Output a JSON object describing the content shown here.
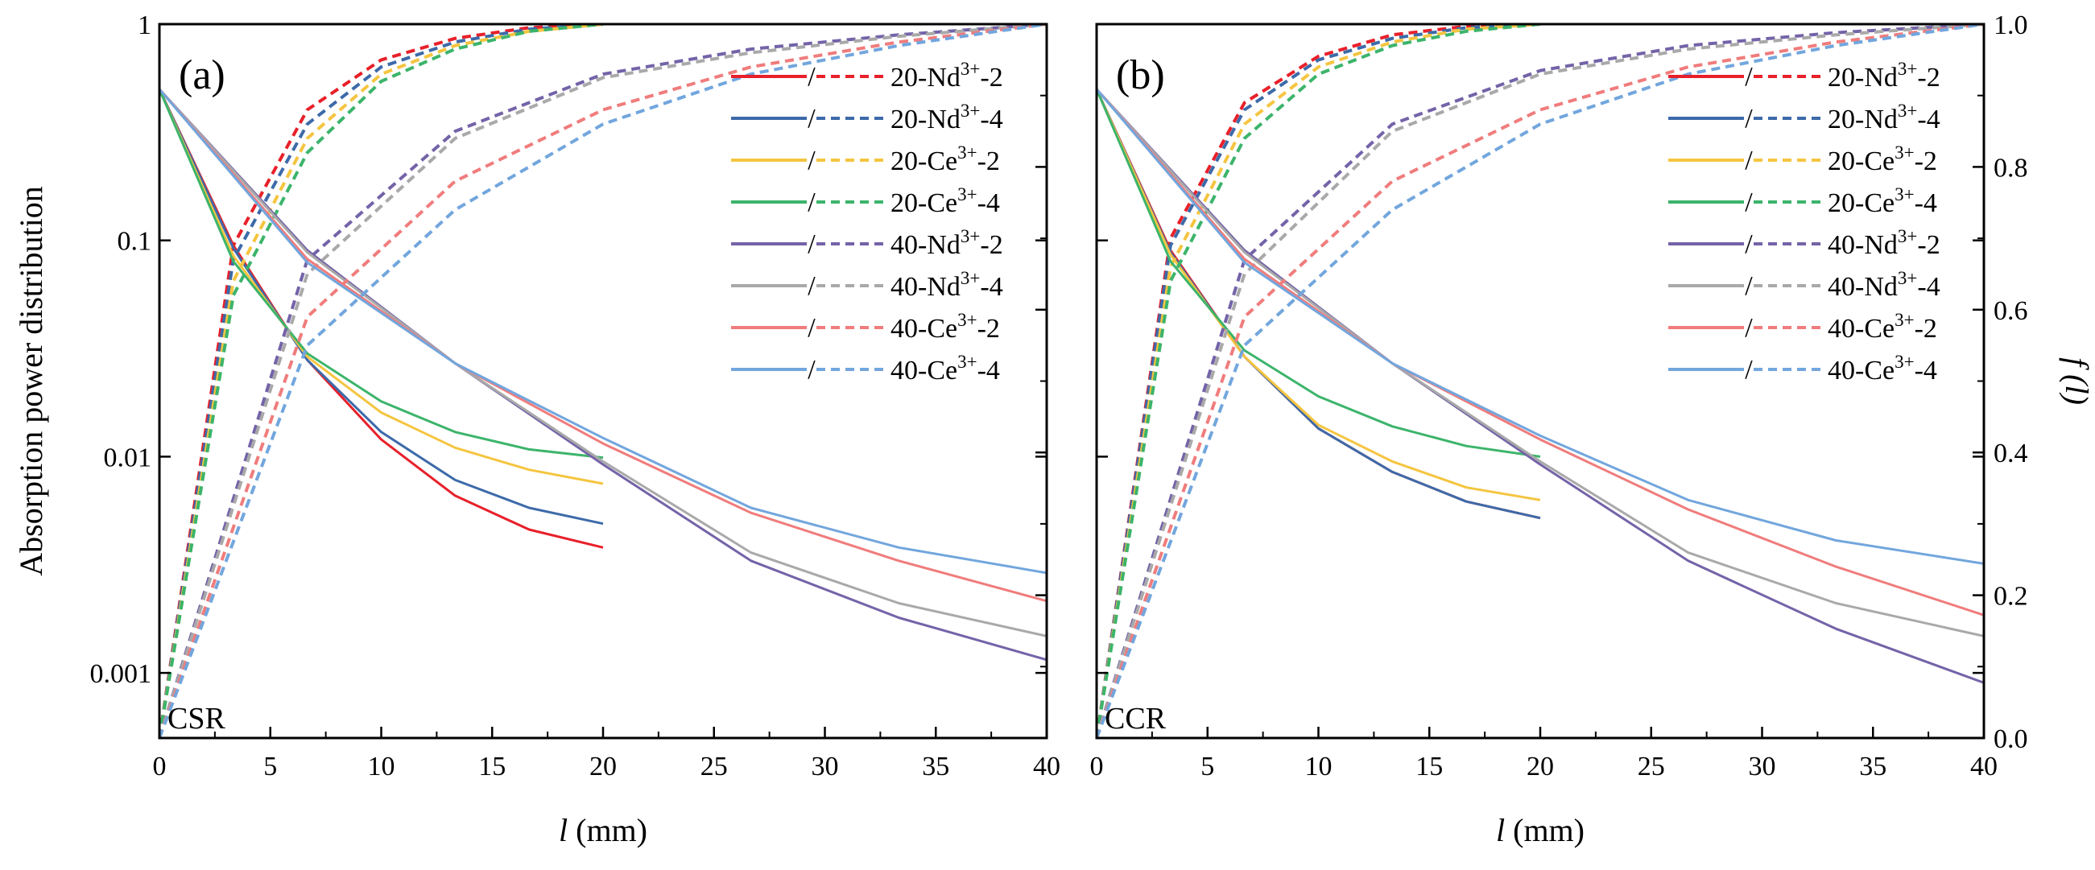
{
  "chart_data": [
    {
      "type": "line",
      "panel_label": "(a)",
      "corner_label": "CSR",
      "xlabel_var": "l",
      "xlabel_unit": " (mm)",
      "ylabel_left": "Absorption power distribution",
      "xlim": [
        0,
        40
      ],
      "ylim_left": [
        0.0005,
        1
      ],
      "yscale_left": "log",
      "x_ticks": [
        "0",
        "5",
        "10",
        "15",
        "20",
        "25",
        "30",
        "35",
        "40"
      ],
      "y_ticks_left": [
        "0.001",
        "0.01",
        "0.1",
        "1"
      ],
      "legend_location": "top-right",
      "series": [
        {
          "name": "20-Nd3+-2",
          "color": "#e8202a",
          "length": 20,
          "apd": [
            0.5,
            0.095,
            0.028,
            0.012,
            0.0066,
            0.0046,
            0.0038
          ],
          "f": [
            0.0,
            0.69,
            0.88,
            0.95,
            0.98,
            0.995,
            1.0
          ]
        },
        {
          "name": "20-Nd3+-4",
          "color": "#3d6aa9",
          "length": 20,
          "apd": [
            0.5,
            0.092,
            0.028,
            0.013,
            0.0078,
            0.0058,
            0.0049
          ],
          "f": [
            0.0,
            0.67,
            0.86,
            0.94,
            0.975,
            0.993,
            1.0
          ]
        },
        {
          "name": "20-Ce3+-2",
          "color": "#f5c540",
          "length": 20,
          "apd": [
            0.5,
            0.085,
            0.029,
            0.016,
            0.011,
            0.0087,
            0.0075
          ],
          "f": [
            0.0,
            0.64,
            0.84,
            0.93,
            0.97,
            0.99,
            1.0
          ]
        },
        {
          "name": "20-Ce3+-4",
          "color": "#3cb46b",
          "length": 20,
          "apd": [
            0.5,
            0.08,
            0.03,
            0.018,
            0.013,
            0.0108,
            0.0099
          ],
          "f": [
            0.0,
            0.62,
            0.82,
            0.92,
            0.965,
            0.99,
            1.0
          ]
        },
        {
          "name": "40-Nd3+-2",
          "color": "#7463a8",
          "length": 40,
          "apd": [
            0.5,
            0.09,
            0.027,
            0.0092,
            0.0033,
            0.0018,
            0.00115
          ],
          "f": [
            0.0,
            0.67,
            0.85,
            0.93,
            0.965,
            0.985,
            1.0
          ]
        },
        {
          "name": "40-Nd3+-4",
          "color": "#a9a9a9",
          "length": 40,
          "apd": [
            0.5,
            0.088,
            0.027,
            0.0095,
            0.0036,
            0.0021,
            0.00148
          ],
          "f": [
            0.0,
            0.65,
            0.84,
            0.925,
            0.96,
            0.983,
            1.0
          ]
        },
        {
          "name": "40-Ce3+-2",
          "color": "#f07c7c",
          "length": 40,
          "apd": [
            0.5,
            0.082,
            0.027,
            0.0115,
            0.0055,
            0.0033,
            0.00215
          ],
          "f": [
            0.0,
            0.59,
            0.78,
            0.88,
            0.94,
            0.975,
            1.0
          ]
        },
        {
          "name": "40-Ce3+-4",
          "color": "#72a6dd",
          "length": 40,
          "apd": [
            0.5,
            0.079,
            0.027,
            0.0122,
            0.0058,
            0.0038,
            0.0029
          ],
          "f": [
            0.0,
            0.55,
            0.74,
            0.86,
            0.93,
            0.97,
            1.0
          ]
        }
      ]
    },
    {
      "type": "line",
      "panel_label": "(b)",
      "corner_label": "CCR",
      "xlabel_var": "l",
      "xlabel_unit": " (mm)",
      "ylabel_right": "f (l)",
      "xlim": [
        0,
        40
      ],
      "ylim_right": [
        0,
        1
      ],
      "x_ticks": [
        "0",
        "5",
        "10",
        "15",
        "20",
        "25",
        "30",
        "35",
        "40"
      ],
      "y_ticks_right": [
        "0.0",
        "0.2",
        "0.4",
        "0.6",
        "0.8",
        "1.0"
      ],
      "legend_location": "top-right",
      "series": [
        {
          "name": "20-Nd3+-2",
          "color": "#e8202a",
          "length": 20,
          "apd": [
            0.5,
            0.09,
            0.029,
            0.0135,
            0.0085,
            0.0062,
            0.0052
          ],
          "f": [
            0.0,
            0.7,
            0.89,
            0.955,
            0.985,
            0.997,
            1.0
          ]
        },
        {
          "name": "20-Nd3+-4",
          "color": "#3d6aa9",
          "length": 20,
          "apd": [
            0.5,
            0.088,
            0.029,
            0.0135,
            0.0085,
            0.0062,
            0.0052
          ],
          "f": [
            0.0,
            0.69,
            0.88,
            0.95,
            0.98,
            0.995,
            1.0
          ]
        },
        {
          "name": "20-Ce3+-2",
          "color": "#f5c540",
          "length": 20,
          "apd": [
            0.5,
            0.086,
            0.029,
            0.014,
            0.0095,
            0.0072,
            0.0063
          ],
          "f": [
            0.0,
            0.66,
            0.86,
            0.94,
            0.975,
            0.993,
            1.0
          ]
        },
        {
          "name": "20-Ce3+-4",
          "color": "#3cb46b",
          "length": 20,
          "apd": [
            0.5,
            0.08,
            0.031,
            0.019,
            0.0138,
            0.0112,
            0.01
          ],
          "f": [
            0.0,
            0.64,
            0.84,
            0.93,
            0.97,
            0.99,
            1.0
          ]
        },
        {
          "name": "40-Nd3+-2",
          "color": "#7463a8",
          "length": 40,
          "apd": [
            0.5,
            0.09,
            0.027,
            0.0092,
            0.0033,
            0.0016,
            0.0009
          ],
          "f": [
            0.0,
            0.67,
            0.86,
            0.935,
            0.97,
            0.988,
            1.0
          ]
        },
        {
          "name": "40-Nd3+-4",
          "color": "#a9a9a9",
          "length": 40,
          "apd": [
            0.5,
            0.088,
            0.027,
            0.0095,
            0.0036,
            0.0021,
            0.00148
          ],
          "f": [
            0.0,
            0.65,
            0.85,
            0.93,
            0.965,
            0.985,
            1.0
          ]
        },
        {
          "name": "40-Ce3+-2",
          "color": "#f07c7c",
          "length": 40,
          "apd": [
            0.5,
            0.082,
            0.027,
            0.012,
            0.0057,
            0.0031,
            0.00185
          ],
          "f": [
            0.0,
            0.59,
            0.78,
            0.88,
            0.94,
            0.975,
            1.0
          ]
        },
        {
          "name": "40-Ce3+-4",
          "color": "#72a6dd",
          "length": 40,
          "apd": [
            0.5,
            0.079,
            0.027,
            0.0125,
            0.0063,
            0.0041,
            0.0032
          ],
          "f": [
            0.0,
            0.55,
            0.74,
            0.86,
            0.93,
            0.97,
            1.0
          ]
        }
      ]
    }
  ]
}
